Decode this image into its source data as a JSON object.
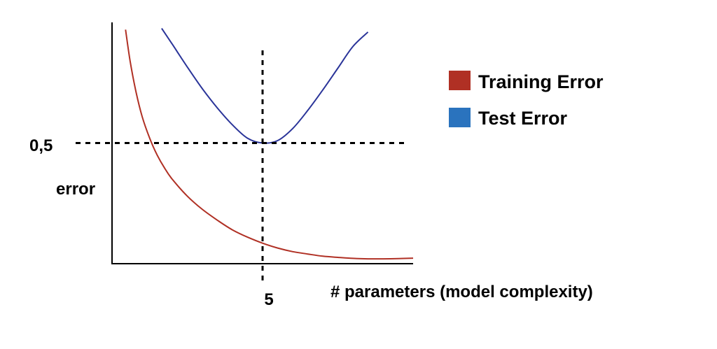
{
  "chart_data": {
    "type": "line",
    "title": "",
    "xlabel": "# parameters (model complexity)",
    "ylabel": "error",
    "xlim": [
      0,
      10
    ],
    "ylim": [
      0,
      1
    ],
    "x_ticks": [
      {
        "value": 5,
        "label": "5"
      }
    ],
    "y_ticks": [
      {
        "value": 0.5,
        "label": "0,5"
      }
    ],
    "reference_lines": {
      "x": 5,
      "y": 0.5,
      "style": "dashed"
    },
    "legend_position": "right",
    "grid": false,
    "series": [
      {
        "name": "Training Error",
        "color": "#b03024",
        "x": [
          0.45,
          0.6,
          0.8,
          1.0,
          1.25,
          1.5,
          1.75,
          2.0,
          2.5,
          3.0,
          3.5,
          4.0,
          4.5,
          5.0,
          5.5,
          6.0,
          6.5,
          7.0,
          7.5,
          8.0,
          8.5,
          9.0,
          9.5,
          10.0
        ],
        "values": [
          0.97,
          0.84,
          0.71,
          0.61,
          0.52,
          0.45,
          0.395,
          0.35,
          0.28,
          0.225,
          0.18,
          0.14,
          0.11,
          0.085,
          0.065,
          0.05,
          0.04,
          0.031,
          0.026,
          0.022,
          0.02,
          0.02,
          0.021,
          0.023
        ]
      },
      {
        "name": "Test Error",
        "color": "#2a3499",
        "x": [
          1.65,
          2.0,
          2.5,
          3.0,
          3.5,
          4.0,
          4.5,
          5.0,
          5.5,
          6.0,
          6.5,
          7.0,
          7.5,
          8.0,
          8.5
        ],
        "values": [
          0.975,
          0.91,
          0.815,
          0.725,
          0.645,
          0.575,
          0.52,
          0.5,
          0.51,
          0.56,
          0.635,
          0.72,
          0.81,
          0.9,
          0.96
        ]
      }
    ]
  }
}
